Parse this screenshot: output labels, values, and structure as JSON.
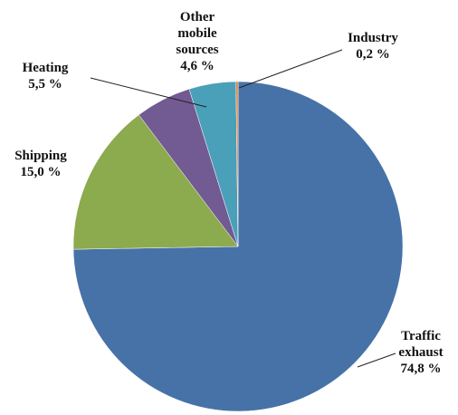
{
  "chart_data": {
    "type": "pie",
    "categories": [
      "Traffic exhaust",
      "Shipping",
      "Heating",
      "Other mobile sources",
      "Industry"
    ],
    "values": [
      74.8,
      15.0,
      5.5,
      4.6,
      0.2
    ],
    "value_labels": [
      "74,8 %",
      "15,0 %",
      "5,5 %",
      "4,6 %",
      "0,2 %"
    ],
    "colors": [
      "#4672a8",
      "#8caa4e",
      "#725a92",
      "#4aa0b8",
      "#e07b39"
    ]
  }
}
